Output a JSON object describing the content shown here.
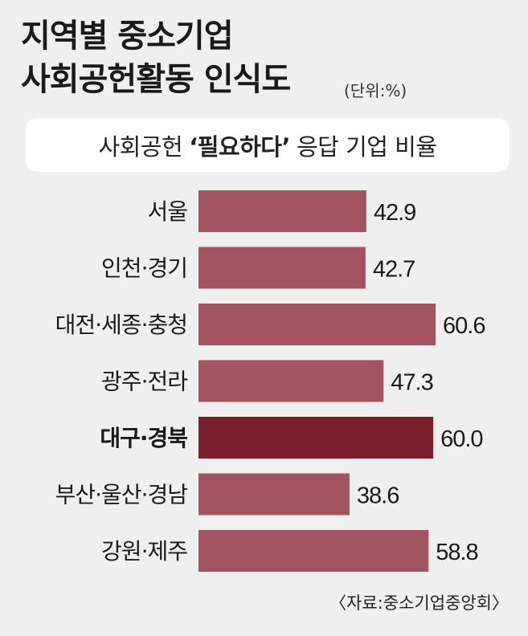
{
  "title_line1": "지역별 중소기업",
  "title_line2": "사회공헌활동 인식도",
  "unit": "(단위:%)",
  "subtitle": {
    "prefix": "사회공헌",
    "quote_open": "‘",
    "emphasis": "필요하다",
    "quote_close": "’",
    "suffix": "응답 기업 비율"
  },
  "source": "〈자료:중소기업중앙회〉",
  "colors": {
    "bar": "#a35461",
    "highlight_bar": "#7b1e2c",
    "background": "#efefef"
  },
  "chart_data": {
    "type": "bar",
    "orientation": "horizontal",
    "categories": [
      "서울",
      "인천·경기",
      "대전·세종·충청",
      "광주·전라",
      "대구·경북",
      "부산·울산·경남",
      "강원·제주"
    ],
    "values": [
      42.9,
      42.7,
      60.6,
      47.3,
      60.0,
      38.6,
      58.8
    ],
    "value_labels": [
      "42.9",
      "42.7",
      "60.6",
      "47.3",
      "60.0",
      "38.6",
      "58.8"
    ],
    "highlight_category": "대구·경북",
    "title": "지역별 중소기업 사회공헌활동 인식도",
    "unit": "%",
    "xlim": [
      0,
      60.6
    ]
  }
}
